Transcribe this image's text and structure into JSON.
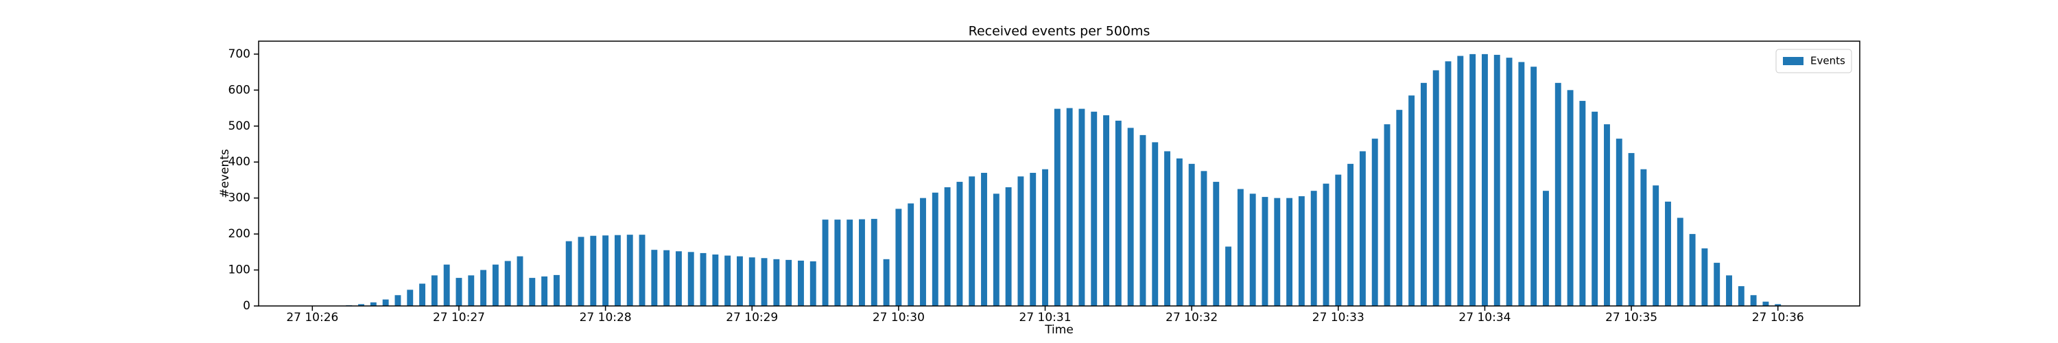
{
  "chart_data": {
    "type": "bar",
    "title": "Received events per 500ms",
    "xlabel": "Time",
    "ylabel": "#events",
    "series": [
      {
        "name": "Events",
        "color": "#1f77b4",
        "values": [
          0,
          0,
          0,
          2,
          5,
          10,
          18,
          30,
          45,
          62,
          85,
          115,
          78,
          85,
          100,
          115,
          125,
          138,
          78,
          82,
          86,
          180,
          192,
          195,
          196,
          197,
          198,
          198,
          156,
          155,
          152,
          150,
          147,
          143,
          140,
          138,
          135,
          133,
          130,
          128,
          126,
          124,
          240,
          240,
          240,
          241,
          242,
          130,
          270,
          285,
          300,
          315,
          330,
          345,
          360,
          370,
          312,
          330,
          360,
          370,
          380,
          548,
          550,
          548,
          540,
          530,
          515,
          495,
          475,
          455,
          430,
          410,
          395,
          375,
          345,
          165,
          325,
          312,
          303,
          300,
          300,
          305,
          320,
          340,
          365,
          395,
          430,
          465,
          505,
          545,
          585,
          620,
          655,
          680,
          695,
          700,
          700,
          698,
          690,
          678,
          665,
          320,
          620,
          600,
          570,
          540,
          505,
          465,
          425,
          380,
          335,
          290,
          245,
          200,
          160,
          120,
          85,
          55,
          30,
          12,
          5
        ]
      }
    ],
    "categories": [
      null,
      null,
      null,
      null,
      null,
      null,
      null,
      null,
      null,
      null,
      null,
      null,
      null,
      null,
      null,
      null,
      null,
      null,
      null,
      null,
      null,
      null,
      null,
      null,
      null,
      null,
      null,
      null,
      null,
      null,
      null,
      null,
      null,
      null,
      null,
      null,
      null,
      null,
      null,
      null,
      null,
      null,
      null,
      null,
      null,
      null,
      null,
      null,
      null,
      null,
      null,
      null,
      null,
      null,
      null,
      null,
      null,
      null,
      null,
      null,
      null,
      null,
      null,
      null,
      null,
      null,
      null,
      null,
      null,
      null,
      null,
      null,
      null,
      null,
      null,
      null,
      null,
      null,
      null,
      null,
      null,
      null,
      null,
      null,
      null,
      null,
      null,
      null,
      null,
      null,
      null,
      null,
      null,
      null,
      null,
      null,
      null,
      null,
      null,
      null,
      null,
      null,
      null,
      null,
      null,
      null,
      null,
      null,
      null,
      null,
      null,
      null,
      null,
      null,
      null,
      null,
      null,
      null,
      null,
      null,
      null
    ],
    "xlim": [
      -4.4,
      126.7
    ],
    "xticks": [
      {
        "value": 0,
        "label": "27 10:26"
      },
      {
        "value": 12,
        "label": "27 10:27"
      },
      {
        "value": 24,
        "label": "27 10:28"
      },
      {
        "value": 36,
        "label": "27 10:29"
      },
      {
        "value": 48,
        "label": "27 10:30"
      },
      {
        "value": 60,
        "label": "27 10:31"
      },
      {
        "value": 72,
        "label": "27 10:32"
      },
      {
        "value": 84,
        "label": "27 10:33"
      },
      {
        "value": 96,
        "label": "27 10:34"
      },
      {
        "value": 108,
        "label": "27 10:35"
      },
      {
        "value": 120,
        "label": "27 10:36"
      }
    ],
    "ylim": [
      0,
      736
    ],
    "yticks": [
      0,
      100,
      200,
      300,
      400,
      500,
      600,
      700
    ],
    "legend": "upper right"
  }
}
